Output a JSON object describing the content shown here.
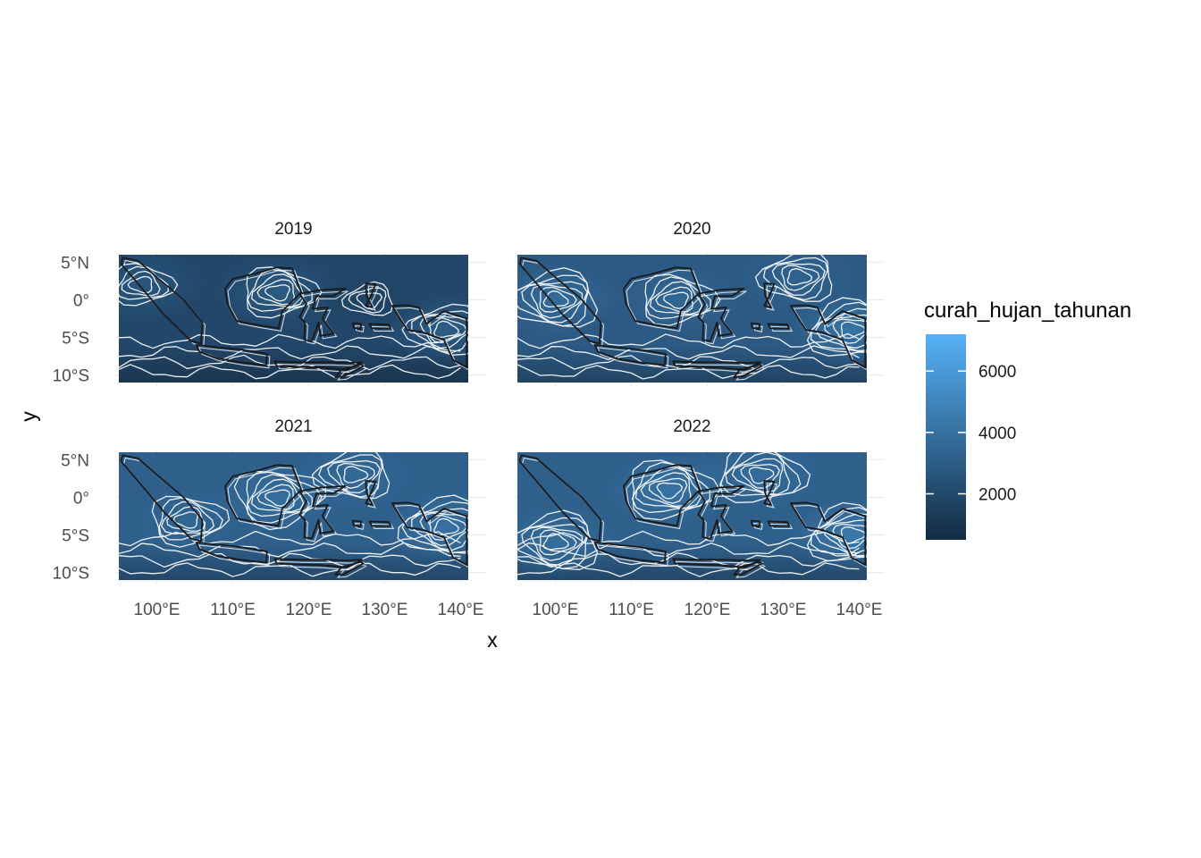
{
  "chart_data": {
    "type": "heatmap",
    "kind": "faceted raster map with contour lines and coastlines",
    "facets": [
      "2019",
      "2020",
      "2021",
      "2022"
    ],
    "facet_layout": {
      "rows": 2,
      "cols": 2
    },
    "xlabel": "x",
    "ylabel": "y",
    "x_ticks": [
      {
        "value": 100,
        "label": "100°E"
      },
      {
        "value": 110,
        "label": "110°E"
      },
      {
        "value": 120,
        "label": "120°E"
      },
      {
        "value": 130,
        "label": "130°E"
      },
      {
        "value": 140,
        "label": "140°E"
      }
    ],
    "y_ticks": [
      {
        "value": 5,
        "label": "5°N"
      },
      {
        "value": 0,
        "label": "0°"
      },
      {
        "value": -5,
        "label": "5°S"
      },
      {
        "value": -10,
        "label": "10°S"
      }
    ],
    "xlim": [
      95,
      141
    ],
    "ylim": [
      -11,
      6
    ],
    "grid": true,
    "legend": {
      "title": "curah_hujan_tahunan",
      "placement": "right",
      "range": [
        500,
        7200
      ],
      "breaks": [
        2000,
        4000,
        6000
      ],
      "break_labels": [
        "2000",
        "4000",
        "6000"
      ],
      "color_low": "#132b43",
      "color_high": "#56b1f7"
    },
    "colors": {
      "contour": "#ffffff",
      "coastline": "#1a1a1a",
      "grid": "#ebebeb"
    },
    "series": [
      {
        "facet": "2019",
        "tint": "#22476a",
        "hotspots": [
          {
            "lon": 116,
            "lat": 1,
            "value": 3000
          },
          {
            "lon": 128,
            "lat": 0,
            "value": 1700
          },
          {
            "lon": 138,
            "lat": -4,
            "value": 3100
          },
          {
            "lon": 98,
            "lat": 2,
            "value": 2800
          }
        ]
      },
      {
        "facet": "2020",
        "tint": "#2c5a84",
        "hotspots": [
          {
            "lon": 116,
            "lat": 0,
            "value": 3600
          },
          {
            "lon": 139,
            "lat": -4,
            "value": 4300
          },
          {
            "lon": 100,
            "lat": 0,
            "value": 3800
          },
          {
            "lon": 132,
            "lat": 3,
            "value": 3300
          }
        ]
      },
      {
        "facet": "2021",
        "tint": "#2f5f8b",
        "hotspots": [
          {
            "lon": 116,
            "lat": 0,
            "value": 4000
          },
          {
            "lon": 138,
            "lat": -4,
            "value": 4100
          },
          {
            "lon": 126,
            "lat": 3,
            "value": 3700
          },
          {
            "lon": 104,
            "lat": -3,
            "value": 3500
          }
        ]
      },
      {
        "facet": "2022",
        "tint": "#2f608c",
        "hotspots": [
          {
            "lon": 115,
            "lat": 1,
            "value": 4200
          },
          {
            "lon": 139,
            "lat": -5,
            "value": 4500
          },
          {
            "lon": 100,
            "lat": -6,
            "value": 3900
          },
          {
            "lon": 127,
            "lat": 3,
            "value": 3800
          }
        ]
      }
    ]
  }
}
